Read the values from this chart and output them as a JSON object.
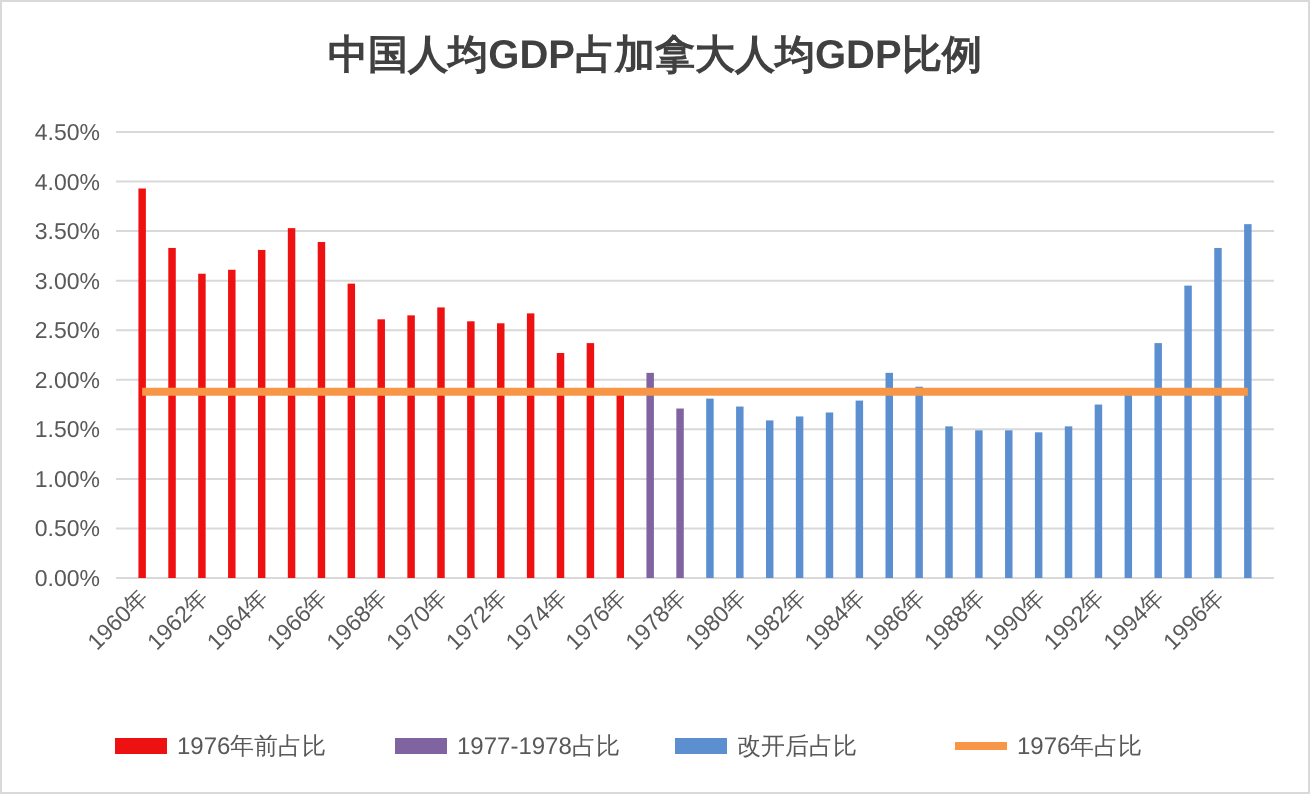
{
  "chart_data": {
    "type": "bar",
    "title": "中国人均GDP占加拿大人均GDP比例",
    "categories": [
      "1960年",
      null,
      "1962年",
      null,
      "1964年",
      null,
      "1966年",
      null,
      "1968年",
      null,
      "1970年",
      null,
      "1972年",
      null,
      "1974年",
      null,
      "1976年",
      null,
      "1978年",
      null,
      "1980年",
      null,
      "1982年",
      null,
      "1984年",
      null,
      "1986年",
      null,
      "1988年",
      null,
      "1990年",
      null,
      "1992年",
      null,
      "1994年",
      null,
      "1996年",
      null
    ],
    "series": [
      {
        "name": "1976年前占比",
        "color": "#ee1111",
        "values": [
          3.93,
          3.33,
          3.07,
          3.11,
          3.31,
          3.53,
          3.39,
          2.97,
          2.61,
          2.65,
          2.73,
          2.59,
          2.57,
          2.67,
          2.27,
          2.37,
          1.88,
          null,
          null,
          null,
          null,
          null,
          null,
          null,
          null,
          null,
          null,
          null,
          null,
          null,
          null,
          null,
          null,
          null,
          null,
          null,
          null,
          null
        ]
      },
      {
        "name": "1977-1978占比",
        "color": "#8064a2",
        "values": [
          null,
          null,
          null,
          null,
          null,
          null,
          null,
          null,
          null,
          null,
          null,
          null,
          null,
          null,
          null,
          null,
          null,
          2.07,
          1.71,
          null,
          null,
          null,
          null,
          null,
          null,
          null,
          null,
          null,
          null,
          null,
          null,
          null,
          null,
          null,
          null,
          null,
          null,
          null
        ]
      },
      {
        "name": "改开后占比",
        "color": "#5b8fd0",
        "values": [
          null,
          null,
          null,
          null,
          null,
          null,
          null,
          null,
          null,
          null,
          null,
          null,
          null,
          null,
          null,
          null,
          null,
          null,
          null,
          1.81,
          1.73,
          1.59,
          1.63,
          1.67,
          1.79,
          2.07,
          1.93,
          1.53,
          1.49,
          1.49,
          1.47,
          1.53,
          1.75,
          1.85,
          2.37,
          2.95,
          3.33,
          3.57
        ]
      },
      {
        "name": "1976年占比",
        "color": "#f79646",
        "type": "line",
        "values": [
          1.88,
          1.88,
          1.88,
          1.88,
          1.88,
          1.88,
          1.88,
          1.88,
          1.88,
          1.88,
          1.88,
          1.88,
          1.88,
          1.88,
          1.88,
          1.88,
          1.88,
          1.88,
          1.88,
          1.88,
          1.88,
          1.88,
          1.88,
          1.88,
          1.88,
          1.88,
          1.88,
          1.88,
          1.88,
          1.88,
          1.88,
          1.88,
          1.88,
          1.88,
          1.88,
          1.88,
          1.88,
          1.88
        ]
      }
    ],
    "ylim": [
      0,
      4.5
    ],
    "yticks": [
      {
        "value": 0,
        "label": "0.00%"
      },
      {
        "value": 0.5,
        "label": "0.50%"
      },
      {
        "value": 1,
        "label": "1.00%"
      },
      {
        "value": 1.5,
        "label": "1.50%"
      },
      {
        "value": 2,
        "label": "2.00%"
      },
      {
        "value": 2.5,
        "label": "2.50%"
      },
      {
        "value": 3,
        "label": "3.00%"
      },
      {
        "value": 3.5,
        "label": "3.50%"
      },
      {
        "value": 4,
        "label": "4.00%"
      },
      {
        "value": 4.5,
        "label": "4.50%"
      }
    ],
    "grid": "y",
    "legend": "bottom"
  }
}
